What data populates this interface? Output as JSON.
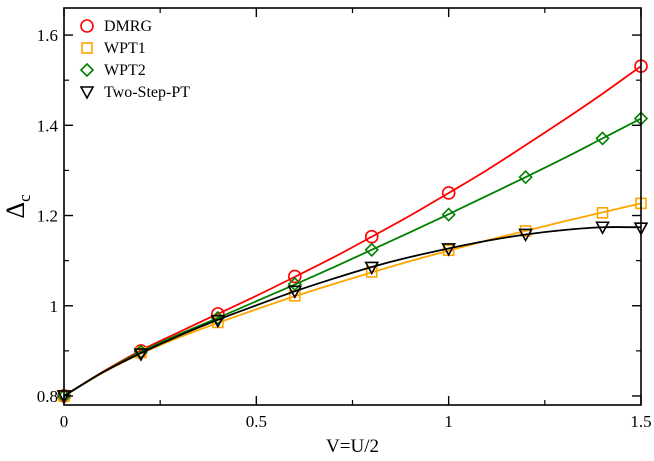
{
  "chart_data": {
    "type": "line",
    "title": "",
    "xlabel": "V=U/2",
    "ylabel": "Δ",
    "ylabel_subscript": "c",
    "xlim": [
      0,
      1.5
    ],
    "ylim": [
      0.78,
      1.66
    ],
    "xticks": [
      0,
      0.5,
      1,
      1.5
    ],
    "xtick_labels": [
      "0",
      "0.5",
      "1",
      "1.5"
    ],
    "yticks": [
      0.8,
      1.0,
      1.2,
      1.4,
      1.6
    ],
    "ytick_labels": [
      "0.8",
      "1",
      "1.2",
      "1.4",
      "1.6"
    ],
    "grid": false,
    "legend_position": "top-left",
    "series": [
      {
        "name": "DMRG",
        "marker": "circle",
        "color": "#ff0000",
        "x": [
          0,
          0.2,
          0.4,
          0.6,
          0.8,
          1.0,
          1.5
        ],
        "y": [
          0.8,
          0.9,
          0.982,
          1.065,
          1.153,
          1.25,
          1.531
        ],
        "curve_x": [
          0,
          0.1,
          0.2,
          0.3,
          0.4,
          0.5,
          0.6,
          0.7,
          0.8,
          0.9,
          1.0,
          1.1,
          1.2,
          1.3,
          1.4,
          1.5
        ],
        "curve_y": [
          0.8,
          0.853,
          0.901,
          0.942,
          0.982,
          1.022,
          1.064,
          1.107,
          1.153,
          1.2,
          1.25,
          1.301,
          1.356,
          1.412,
          1.47,
          1.531
        ]
      },
      {
        "name": "WPT1",
        "marker": "square",
        "color": "#ffa500",
        "x": [
          0,
          0.2,
          0.4,
          0.6,
          0.8,
          1.0,
          1.2,
          1.4,
          1.5
        ],
        "y": [
          0.8,
          0.896,
          0.963,
          1.022,
          1.075,
          1.123,
          1.166,
          1.206,
          1.227
        ],
        "curve_x": [
          0,
          0.1,
          0.2,
          0.3,
          0.4,
          0.5,
          0.6,
          0.7,
          0.8,
          0.9,
          1.0,
          1.1,
          1.2,
          1.3,
          1.4,
          1.5
        ],
        "curve_y": [
          0.8,
          0.851,
          0.894,
          0.93,
          0.962,
          0.992,
          1.021,
          1.048,
          1.074,
          1.099,
          1.122,
          1.145,
          1.166,
          1.187,
          1.207,
          1.227
        ]
      },
      {
        "name": "WPT2",
        "marker": "diamond",
        "color": "#008000",
        "x": [
          0,
          0.2,
          0.4,
          0.6,
          0.8,
          1.0,
          1.2,
          1.4,
          1.5
        ],
        "y": [
          0.8,
          0.898,
          0.973,
          1.048,
          1.124,
          1.202,
          1.285,
          1.371,
          1.415
        ],
        "curve_x": [
          0,
          0.1,
          0.2,
          0.3,
          0.4,
          0.5,
          0.6,
          0.7,
          0.8,
          0.9,
          1.0,
          1.1,
          1.2,
          1.3,
          1.4,
          1.5
        ],
        "curve_y": [
          0.8,
          0.852,
          0.898,
          0.937,
          0.973,
          1.01,
          1.047,
          1.085,
          1.124,
          1.163,
          1.203,
          1.244,
          1.285,
          1.327,
          1.371,
          1.415
        ]
      },
      {
        "name": "Two-Step-PT",
        "marker": "triangle-down",
        "color": "#000000",
        "x": [
          0,
          0.2,
          0.4,
          0.6,
          0.8,
          1.0,
          1.2,
          1.4,
          1.5
        ],
        "y": [
          0.8,
          0.893,
          0.967,
          1.032,
          1.085,
          1.126,
          1.158,
          1.174,
          1.172
        ],
        "curve_x": [
          0,
          0.1,
          0.2,
          0.3,
          0.4,
          0.5,
          0.6,
          0.7,
          0.8,
          0.9,
          1.0,
          1.1,
          1.2,
          1.3,
          1.4,
          1.5
        ],
        "curve_y": [
          0.8,
          0.852,
          0.895,
          0.934,
          0.969,
          1.001,
          1.032,
          1.06,
          1.086,
          1.108,
          1.127,
          1.144,
          1.158,
          1.168,
          1.174,
          1.174
        ]
      }
    ]
  }
}
